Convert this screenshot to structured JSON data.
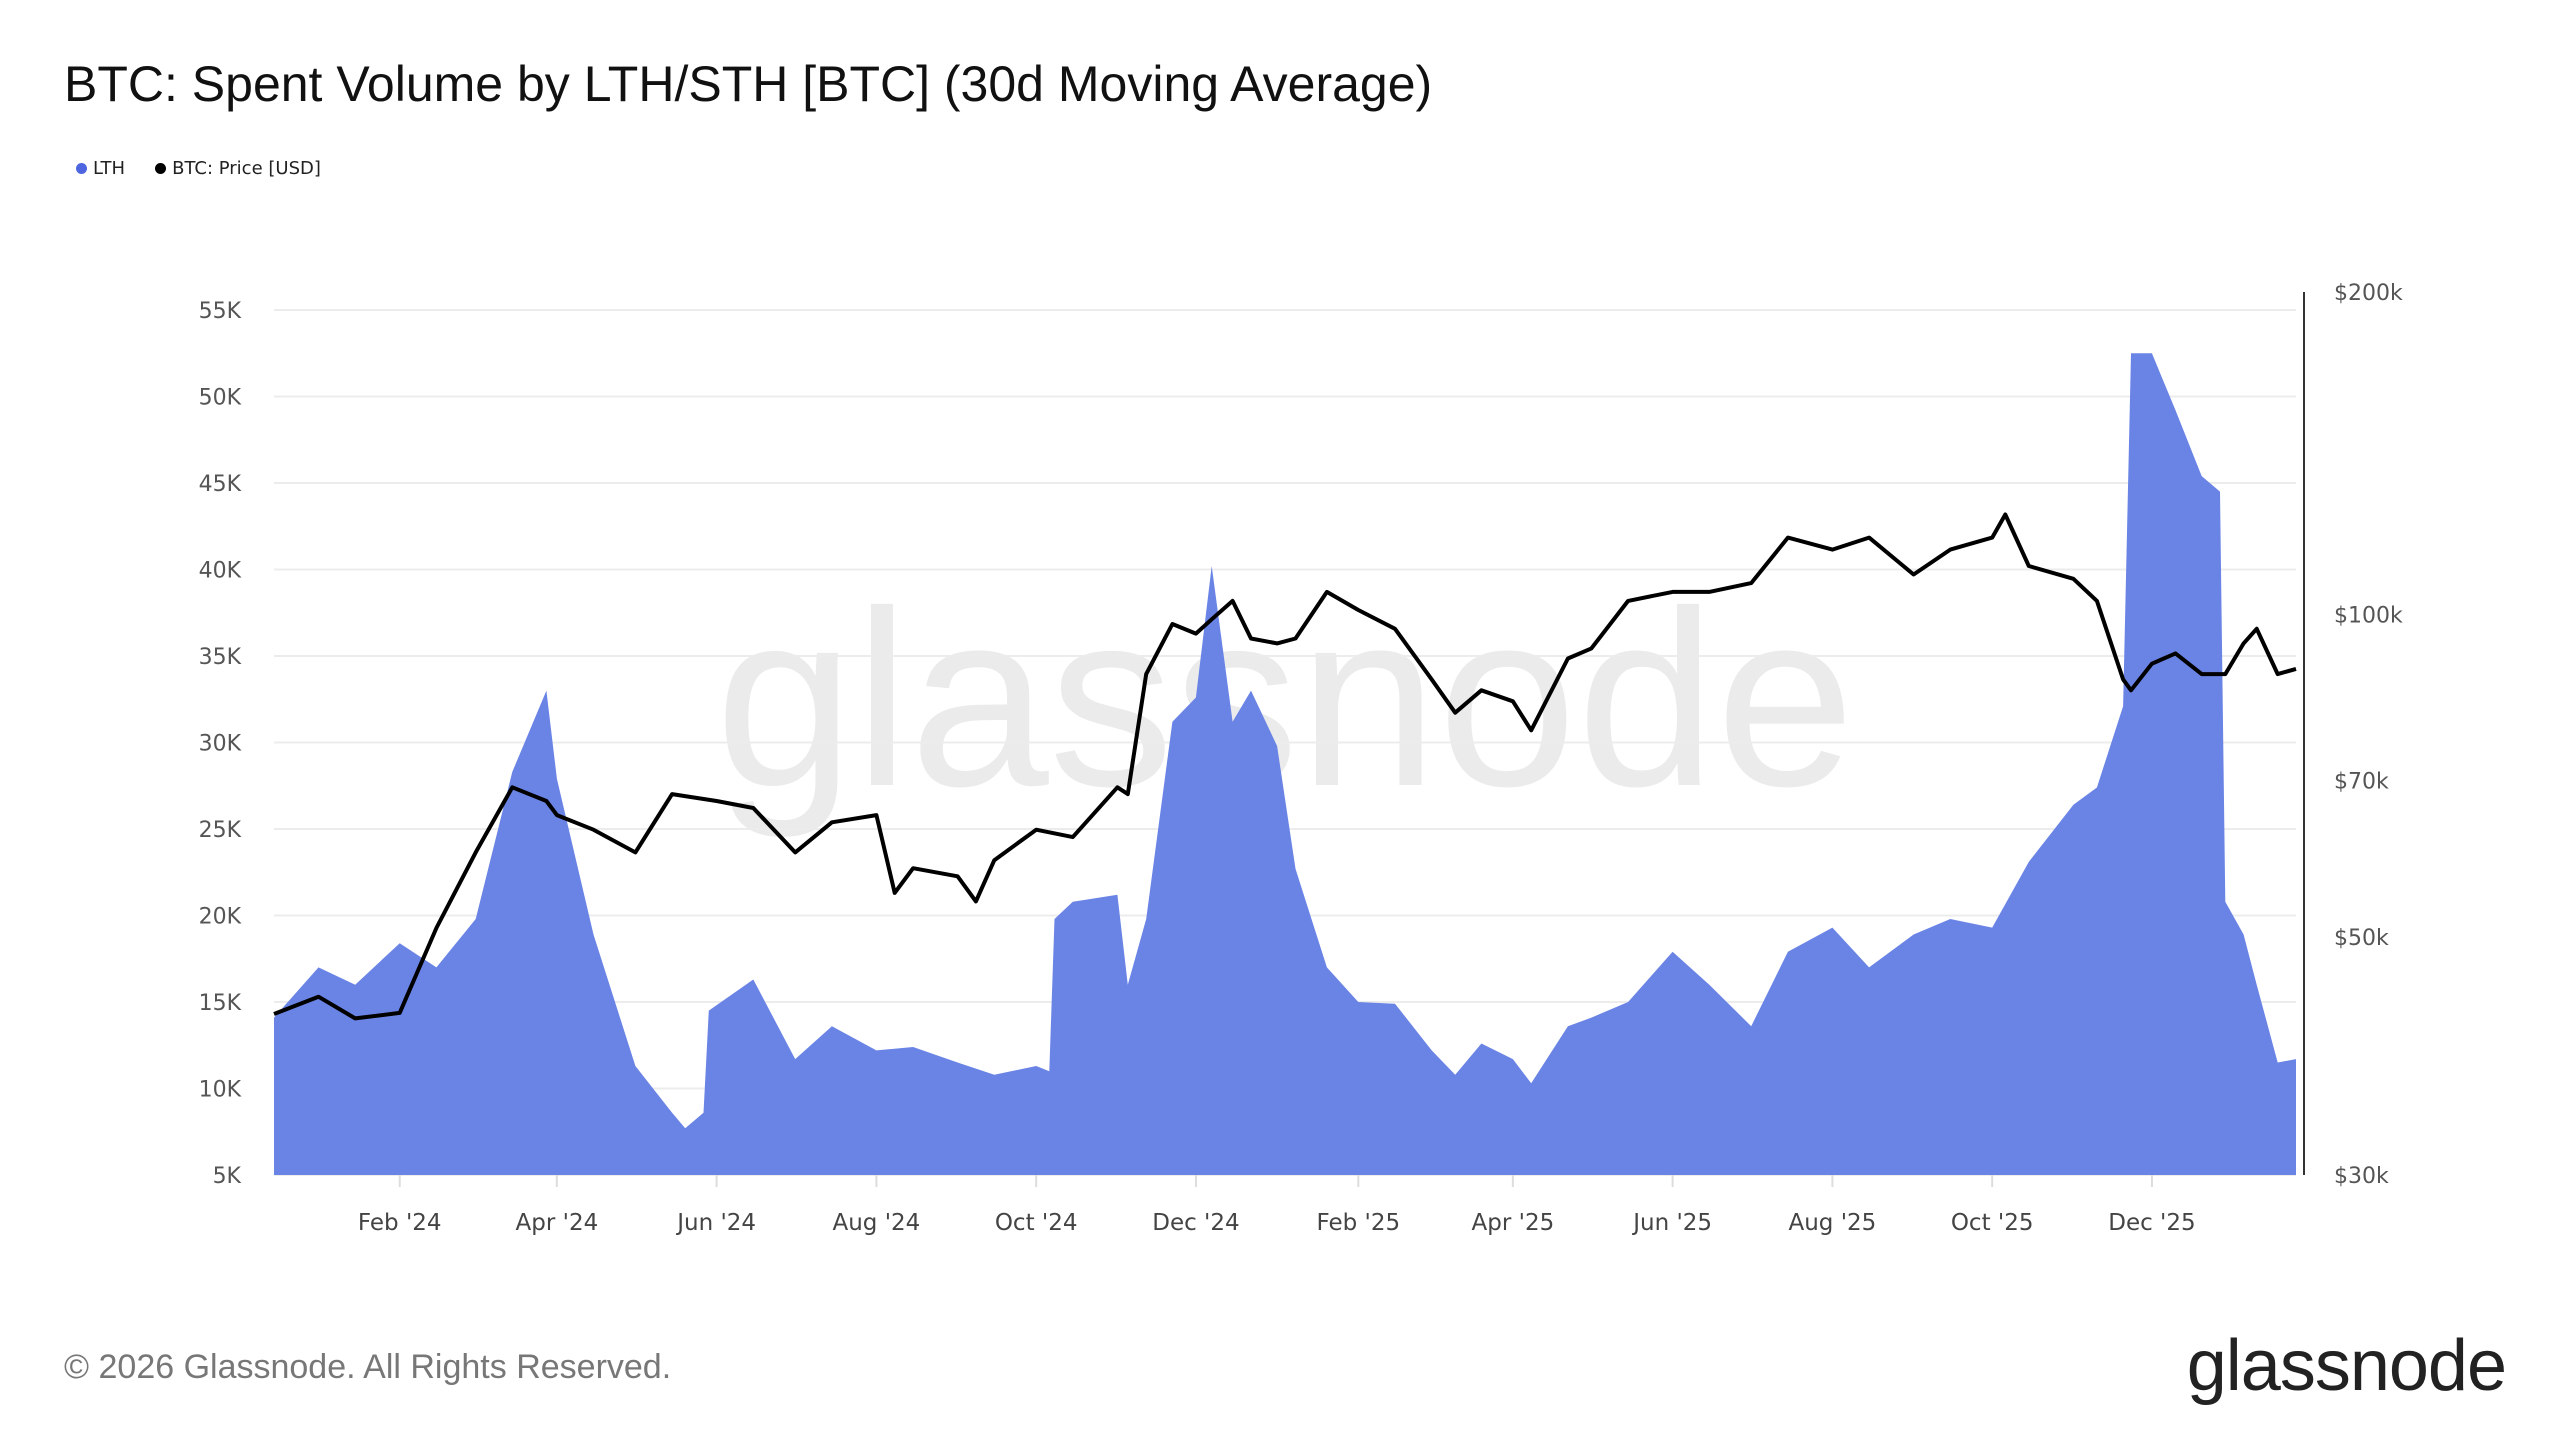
{
  "title": "BTC: Spent Volume by LTH/STH [BTC] (30d Moving Average)",
  "footer": "© 2026 Glassnode. All Rights Reserved.",
  "logo": "glassnode",
  "watermark": "glassnode",
  "legend": [
    {
      "label": "LTH",
      "color": "#5b73e8"
    },
    {
      "label": "BTC: Price [USD]",
      "color": "#000000"
    }
  ],
  "chart_data": {
    "type": "area",
    "title": "BTC: Spent Volume by LTH/STH [BTC] (30d Moving Average)",
    "legend_position": "top-left",
    "grid": true,
    "x_ticks": [
      {
        "date": "2024-02-01",
        "label": "Feb '24"
      },
      {
        "date": "2024-04-01",
        "label": "Apr '24"
      },
      {
        "date": "2024-06-01",
        "label": "Jun '24"
      },
      {
        "date": "2024-08-01",
        "label": "Aug '24"
      },
      {
        "date": "2024-10-01",
        "label": "Oct '24"
      },
      {
        "date": "2024-12-01",
        "label": "Dec '24"
      },
      {
        "date": "2025-02-01",
        "label": "Feb '25"
      },
      {
        "date": "2025-04-01",
        "label": "Apr '25"
      },
      {
        "date": "2025-06-01",
        "label": "Jun '25"
      },
      {
        "date": "2025-08-01",
        "label": "Aug '25"
      },
      {
        "date": "2025-10-01",
        "label": "Oct '25"
      },
      {
        "date": "2025-12-01",
        "label": "Dec '25"
      }
    ],
    "xlim": [
      "2023-12-15",
      "2026-01-25"
    ],
    "y_left": {
      "ylim": [
        5000,
        55000
      ],
      "ticks": [
        5000,
        10000,
        15000,
        20000,
        25000,
        30000,
        35000,
        40000,
        45000,
        50000,
        55000
      ],
      "tick_labels": [
        "5K",
        "10K",
        "15K",
        "20K",
        "25K",
        "30K",
        "35K",
        "40K",
        "45K",
        "50K",
        "55K"
      ]
    },
    "y_right": {
      "scale": "log",
      "ylim": [
        30000,
        200000
      ],
      "ticks": [
        30000,
        50000,
        70000,
        100000,
        200000
      ],
      "tick_labels": [
        "$30k",
        "$50k",
        "$70k",
        "$100k",
        "$200k"
      ]
    },
    "series": [
      {
        "name": "LTH",
        "type": "area",
        "axis": "left",
        "color": "#6a84e6",
        "points": [
          [
            "2023-12-15",
            14100
          ],
          [
            "2024-01-01",
            17000
          ],
          [
            "2024-01-15",
            16000
          ],
          [
            "2024-02-01",
            18400
          ],
          [
            "2024-02-15",
            17000
          ],
          [
            "2024-03-01",
            19800
          ],
          [
            "2024-03-15",
            28300
          ],
          [
            "2024-03-28",
            33000
          ],
          [
            "2024-04-01",
            27900
          ],
          [
            "2024-04-15",
            18900
          ],
          [
            "2024-05-01",
            11300
          ],
          [
            "2024-05-15",
            8600
          ],
          [
            "2024-05-20",
            7700
          ],
          [
            "2024-05-27",
            8600
          ],
          [
            "2024-05-29",
            14500
          ],
          [
            "2024-06-15",
            16300
          ],
          [
            "2024-07-01",
            11700
          ],
          [
            "2024-07-15",
            13600
          ],
          [
            "2024-08-01",
            12200
          ],
          [
            "2024-08-15",
            12400
          ],
          [
            "2024-09-01",
            11500
          ],
          [
            "2024-09-15",
            10800
          ],
          [
            "2024-10-01",
            11300
          ],
          [
            "2024-10-06",
            11000
          ],
          [
            "2024-10-08",
            19800
          ],
          [
            "2024-10-15",
            20800
          ],
          [
            "2024-11-01",
            21200
          ],
          [
            "2024-11-05",
            16000
          ],
          [
            "2024-11-12",
            19800
          ],
          [
            "2024-11-22",
            31200
          ],
          [
            "2024-12-01",
            32600
          ],
          [
            "2024-12-07",
            40200
          ],
          [
            "2024-12-15",
            31200
          ],
          [
            "2024-12-22",
            33000
          ],
          [
            "2025-01-01",
            29800
          ],
          [
            "2025-01-08",
            22700
          ],
          [
            "2025-01-20",
            17000
          ],
          [
            "2025-02-01",
            15000
          ],
          [
            "2025-02-15",
            14900
          ],
          [
            "2025-03-01",
            12200
          ],
          [
            "2025-03-10",
            10800
          ],
          [
            "2025-03-20",
            12600
          ],
          [
            "2025-04-01",
            11700
          ],
          [
            "2025-04-08",
            10300
          ],
          [
            "2025-04-22",
            13600
          ],
          [
            "2025-05-01",
            14100
          ],
          [
            "2025-05-15",
            15000
          ],
          [
            "2025-06-01",
            17900
          ],
          [
            "2025-06-15",
            16000
          ],
          [
            "2025-07-01",
            13600
          ],
          [
            "2025-07-15",
            17900
          ],
          [
            "2025-08-01",
            19300
          ],
          [
            "2025-08-15",
            17000
          ],
          [
            "2025-09-01",
            18900
          ],
          [
            "2025-09-15",
            19800
          ],
          [
            "2025-10-01",
            19300
          ],
          [
            "2025-10-15",
            23100
          ],
          [
            "2025-11-01",
            26400
          ],
          [
            "2025-11-10",
            27400
          ],
          [
            "2025-11-20",
            32100
          ],
          [
            "2025-11-23",
            52500
          ],
          [
            "2025-12-01",
            52500
          ],
          [
            "2025-12-10",
            49200
          ],
          [
            "2025-12-20",
            45400
          ],
          [
            "2025-12-27",
            44500
          ],
          [
            "2025-12-29",
            20800
          ],
          [
            "2026-01-05",
            18900
          ],
          [
            "2026-01-10",
            16000
          ],
          [
            "2026-01-18",
            11500
          ],
          [
            "2026-01-25",
            11700
          ]
        ]
      },
      {
        "name": "BTC: Price [USD]",
        "type": "line",
        "axis": "right",
        "color": "#000000",
        "points": [
          [
            "2023-12-15",
            42400
          ],
          [
            "2024-01-01",
            44000
          ],
          [
            "2024-01-15",
            42000
          ],
          [
            "2024-02-01",
            42500
          ],
          [
            "2024-02-15",
            51000
          ],
          [
            "2024-03-01",
            60000
          ],
          [
            "2024-03-15",
            69000
          ],
          [
            "2024-03-28",
            67000
          ],
          [
            "2024-04-01",
            65000
          ],
          [
            "2024-04-15",
            63000
          ],
          [
            "2024-05-01",
            60000
          ],
          [
            "2024-05-15",
            68000
          ],
          [
            "2024-06-01",
            67000
          ],
          [
            "2024-06-15",
            66000
          ],
          [
            "2024-07-01",
            60000
          ],
          [
            "2024-07-15",
            64000
          ],
          [
            "2024-08-01",
            65000
          ],
          [
            "2024-08-08",
            55000
          ],
          [
            "2024-08-15",
            58000
          ],
          [
            "2024-09-01",
            57000
          ],
          [
            "2024-09-08",
            54000
          ],
          [
            "2024-09-15",
            59000
          ],
          [
            "2024-10-01",
            63000
          ],
          [
            "2024-10-15",
            62000
          ],
          [
            "2024-11-01",
            69000
          ],
          [
            "2024-11-05",
            68000
          ],
          [
            "2024-11-12",
            88000
          ],
          [
            "2024-11-22",
            98000
          ],
          [
            "2024-12-01",
            96000
          ],
          [
            "2024-12-07",
            99000
          ],
          [
            "2024-12-15",
            103000
          ],
          [
            "2024-12-22",
            95000
          ],
          [
            "2025-01-01",
            94000
          ],
          [
            "2025-01-08",
            95000
          ],
          [
            "2025-01-20",
            105000
          ],
          [
            "2025-02-01",
            101000
          ],
          [
            "2025-02-15",
            97000
          ],
          [
            "2025-03-01",
            87000
          ],
          [
            "2025-03-10",
            81000
          ],
          [
            "2025-03-20",
            85000
          ],
          [
            "2025-04-01",
            83000
          ],
          [
            "2025-04-08",
            78000
          ],
          [
            "2025-04-22",
            91000
          ],
          [
            "2025-05-01",
            93000
          ],
          [
            "2025-05-15",
            103000
          ],
          [
            "2025-06-01",
            105000
          ],
          [
            "2025-06-15",
            105000
          ],
          [
            "2025-07-01",
            107000
          ],
          [
            "2025-07-15",
            118000
          ],
          [
            "2025-08-01",
            115000
          ],
          [
            "2025-08-15",
            118000
          ],
          [
            "2025-09-01",
            109000
          ],
          [
            "2025-09-15",
            115000
          ],
          [
            "2025-10-01",
            118000
          ],
          [
            "2025-10-06",
            124000
          ],
          [
            "2025-10-15",
            111000
          ],
          [
            "2025-11-01",
            108000
          ],
          [
            "2025-11-10",
            103000
          ],
          [
            "2025-11-20",
            87000
          ],
          [
            "2025-11-23",
            85000
          ],
          [
            "2025-12-01",
            90000
          ],
          [
            "2025-12-10",
            92000
          ],
          [
            "2025-12-20",
            88000
          ],
          [
            "2025-12-29",
            88000
          ],
          [
            "2026-01-05",
            94000
          ],
          [
            "2026-01-10",
            97000
          ],
          [
            "2026-01-18",
            88000
          ],
          [
            "2026-01-25",
            89000
          ]
        ]
      }
    ]
  }
}
